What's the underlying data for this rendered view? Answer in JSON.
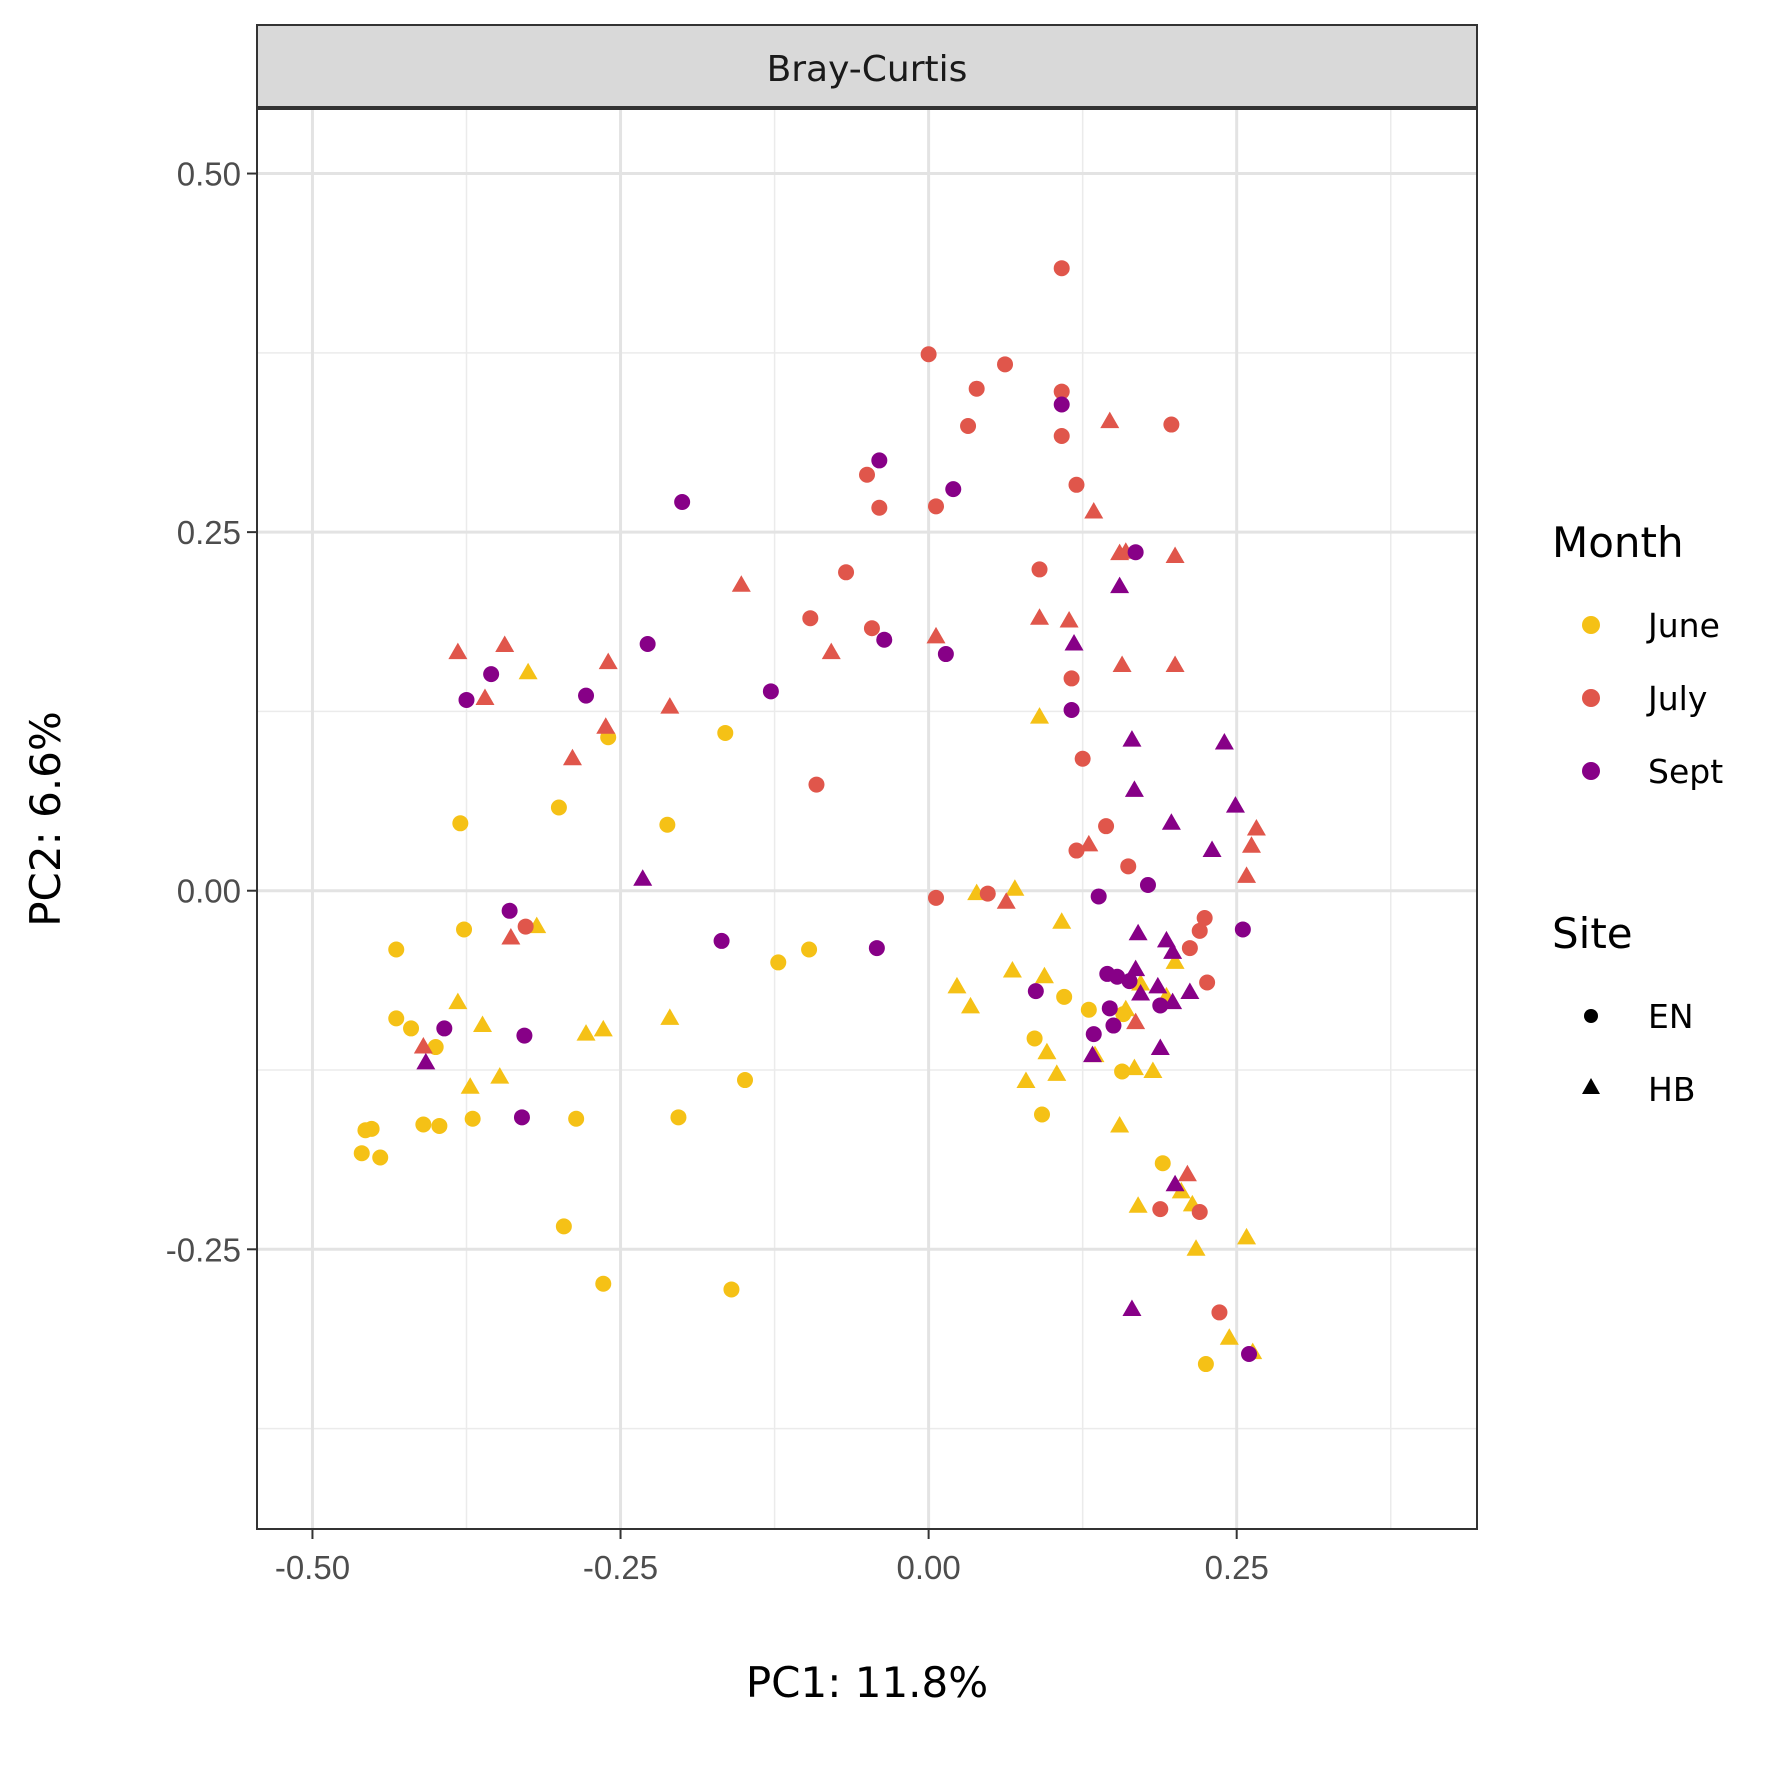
{
  "chart_data": {
    "type": "scatter",
    "facet_title": "Bray-Curtis",
    "xlabel": "PC1:  11.8%",
    "ylabel": "PC2:  6.6%",
    "xlim": [
      -0.545,
      0.445
    ],
    "ylim": [
      -0.445,
      0.545
    ],
    "x_ticks": [
      -0.5,
      -0.25,
      0.0,
      0.25
    ],
    "x_tick_labels": [
      "-0.50",
      "-0.25",
      "0.00",
      "0.25"
    ],
    "y_ticks": [
      -0.25,
      0.0,
      0.25,
      0.5
    ],
    "y_tick_labels": [
      "-0.25",
      "0.00",
      "0.25",
      "0.50"
    ],
    "grid": true,
    "legend_position": "right",
    "color_legend": {
      "title": "Month",
      "items": [
        {
          "label": "June",
          "color": "#F5C116"
        },
        {
          "label": "July",
          "color": "#E0564B"
        },
        {
          "label": "Sept",
          "color": "#870087"
        }
      ]
    },
    "shape_legend": {
      "title": "Site",
      "items": [
        {
          "label": "EN",
          "shape": "circle"
        },
        {
          "label": "HB",
          "shape": "triangle"
        }
      ]
    },
    "series": [
      {
        "name": "June",
        "shape": "circle",
        "points": [
          [
            -0.46,
            -0.183
          ],
          [
            -0.457,
            -0.167
          ],
          [
            -0.452,
            -0.166
          ],
          [
            -0.445,
            -0.186
          ],
          [
            -0.432,
            -0.041
          ],
          [
            -0.432,
            -0.089
          ],
          [
            -0.42,
            -0.096
          ],
          [
            -0.41,
            -0.163
          ],
          [
            -0.4,
            -0.109
          ],
          [
            -0.397,
            -0.164
          ],
          [
            -0.38,
            0.047
          ],
          [
            -0.377,
            -0.027
          ],
          [
            -0.37,
            -0.159
          ],
          [
            -0.3,
            0.058
          ],
          [
            -0.296,
            -0.234
          ],
          [
            -0.286,
            -0.159
          ],
          [
            -0.26,
            0.107
          ],
          [
            -0.264,
            -0.274
          ],
          [
            -0.212,
            0.046
          ],
          [
            -0.203,
            -0.158
          ],
          [
            -0.165,
            0.11
          ],
          [
            -0.16,
            -0.278
          ],
          [
            -0.149,
            -0.132
          ],
          [
            -0.122,
            -0.05
          ],
          [
            -0.097,
            -0.041
          ],
          [
            0.086,
            -0.103
          ],
          [
            0.092,
            -0.156
          ],
          [
            0.11,
            -0.074
          ],
          [
            0.13,
            -0.083
          ],
          [
            0.157,
            -0.126
          ],
          [
            0.158,
            -0.086
          ],
          [
            0.19,
            -0.19
          ],
          [
            0.225,
            -0.33
          ]
        ]
      },
      {
        "name": "June",
        "shape": "triangle",
        "points": [
          [
            -0.382,
            -0.078
          ],
          [
            -0.372,
            -0.137
          ],
          [
            -0.362,
            -0.094
          ],
          [
            -0.348,
            -0.13
          ],
          [
            -0.325,
            0.152
          ],
          [
            -0.318,
            -0.025
          ],
          [
            -0.278,
            -0.1
          ],
          [
            -0.264,
            -0.097
          ],
          [
            -0.21,
            -0.089
          ],
          [
            0.023,
            -0.067
          ],
          [
            0.034,
            -0.081
          ],
          [
            0.039,
            -0.002
          ],
          [
            0.07,
            0.001
          ],
          [
            0.068,
            -0.056
          ],
          [
            0.079,
            -0.133
          ],
          [
            0.09,
            0.121
          ],
          [
            0.094,
            -0.06
          ],
          [
            0.096,
            -0.113
          ],
          [
            0.104,
            -0.128
          ],
          [
            0.108,
            -0.022
          ],
          [
            0.135,
            -0.115
          ],
          [
            0.155,
            -0.164
          ],
          [
            0.16,
            -0.083
          ],
          [
            0.167,
            -0.124
          ],
          [
            0.172,
            -0.065
          ],
          [
            0.17,
            -0.22
          ],
          [
            0.182,
            -0.126
          ],
          [
            0.193,
            -0.074
          ],
          [
            0.2,
            -0.05
          ],
          [
            0.205,
            -0.21
          ],
          [
            0.214,
            -0.219
          ],
          [
            0.217,
            -0.25
          ],
          [
            0.244,
            -0.312
          ],
          [
            0.258,
            -0.242
          ],
          [
            0.263,
            -0.322
          ]
        ]
      },
      {
        "name": "July",
        "shape": "circle",
        "points": [
          [
            -0.327,
            -0.025
          ],
          [
            -0.096,
            0.19
          ],
          [
            -0.091,
            0.074
          ],
          [
            -0.067,
            0.222
          ],
          [
            -0.05,
            0.29
          ],
          [
            -0.046,
            0.183
          ],
          [
            -0.04,
            0.267
          ],
          [
            0.0,
            0.374
          ],
          [
            0.006,
            0.268
          ],
          [
            0.006,
            -0.005
          ],
          [
            0.032,
            0.324
          ],
          [
            0.039,
            0.35
          ],
          [
            0.062,
            0.367
          ],
          [
            0.048,
            -0.002
          ],
          [
            0.09,
            0.224
          ],
          [
            0.108,
            0.434
          ],
          [
            0.108,
            0.348
          ],
          [
            0.108,
            0.317
          ],
          [
            0.116,
            0.148
          ],
          [
            0.12,
            0.283
          ],
          [
            0.12,
            0.028
          ],
          [
            0.125,
            0.092
          ],
          [
            0.144,
            0.045
          ],
          [
            0.162,
            0.017
          ],
          [
            0.188,
            -0.222
          ],
          [
            0.197,
            0.325
          ],
          [
            0.212,
            -0.04
          ],
          [
            0.22,
            -0.028
          ],
          [
            0.224,
            -0.019
          ],
          [
            0.22,
            -0.224
          ],
          [
            0.226,
            -0.064
          ],
          [
            0.236,
            -0.294
          ]
        ]
      },
      {
        "name": "July",
        "shape": "triangle",
        "points": [
          [
            -0.41,
            -0.109
          ],
          [
            -0.382,
            0.166
          ],
          [
            -0.36,
            0.134
          ],
          [
            -0.344,
            0.171
          ],
          [
            -0.339,
            -0.033
          ],
          [
            -0.289,
            0.092
          ],
          [
            -0.262,
            0.114
          ],
          [
            -0.26,
            0.159
          ],
          [
            -0.21,
            0.128
          ],
          [
            -0.152,
            0.213
          ],
          [
            -0.079,
            0.166
          ],
          [
            0.006,
            0.177
          ],
          [
            0.063,
            -0.008
          ],
          [
            0.09,
            0.19
          ],
          [
            0.114,
            0.188
          ],
          [
            0.13,
            0.032
          ],
          [
            0.134,
            0.264
          ],
          [
            0.147,
            0.327
          ],
          [
            0.155,
            0.235
          ],
          [
            0.157,
            0.157
          ],
          [
            0.16,
            0.236
          ],
          [
            0.168,
            -0.092
          ],
          [
            0.2,
            0.233
          ],
          [
            0.2,
            0.157
          ],
          [
            0.21,
            -0.198
          ],
          [
            0.258,
            0.01
          ],
          [
            0.262,
            0.031
          ],
          [
            0.266,
            0.043
          ]
        ]
      },
      {
        "name": "Sept",
        "shape": "circle",
        "points": [
          [
            -0.393,
            -0.096
          ],
          [
            -0.375,
            0.133
          ],
          [
            -0.355,
            0.151
          ],
          [
            -0.34,
            -0.014
          ],
          [
            -0.328,
            -0.101
          ],
          [
            -0.33,
            -0.158
          ],
          [
            -0.278,
            0.136
          ],
          [
            -0.228,
            0.172
          ],
          [
            -0.2,
            0.271
          ],
          [
            -0.168,
            -0.035
          ],
          [
            -0.128,
            0.139
          ],
          [
            -0.042,
            -0.04
          ],
          [
            -0.04,
            0.3
          ],
          [
            -0.036,
            0.175
          ],
          [
            0.014,
            0.165
          ],
          [
            0.02,
            0.28
          ],
          [
            0.087,
            -0.07
          ],
          [
            0.108,
            0.339
          ],
          [
            0.116,
            0.126
          ],
          [
            0.134,
            -0.1
          ],
          [
            0.138,
            -0.004
          ],
          [
            0.145,
            -0.058
          ],
          [
            0.147,
            -0.082
          ],
          [
            0.15,
            -0.094
          ],
          [
            0.153,
            -0.06
          ],
          [
            0.163,
            -0.063
          ],
          [
            0.168,
            0.236
          ],
          [
            0.178,
            0.004
          ],
          [
            0.188,
            -0.08
          ],
          [
            0.255,
            -0.027
          ],
          [
            0.26,
            -0.323
          ]
        ]
      },
      {
        "name": "Sept",
        "shape": "triangle",
        "points": [
          [
            -0.408,
            -0.12
          ],
          [
            -0.232,
            0.008
          ],
          [
            0.118,
            0.172
          ],
          [
            0.133,
            -0.115
          ],
          [
            0.155,
            0.212
          ],
          [
            0.165,
            0.105
          ],
          [
            0.167,
            0.07
          ],
          [
            0.168,
            -0.055
          ],
          [
            0.17,
            -0.03
          ],
          [
            0.172,
            -0.072
          ],
          [
            0.165,
            -0.292
          ],
          [
            0.186,
            -0.067
          ],
          [
            0.188,
            -0.11
          ],
          [
            0.193,
            -0.035
          ],
          [
            0.197,
            0.047
          ],
          [
            0.198,
            -0.043
          ],
          [
            0.198,
            -0.078
          ],
          [
            0.2,
            -0.205
          ],
          [
            0.212,
            -0.071
          ],
          [
            0.23,
            0.028
          ],
          [
            0.24,
            0.103
          ],
          [
            0.249,
            0.059
          ]
        ]
      }
    ]
  }
}
